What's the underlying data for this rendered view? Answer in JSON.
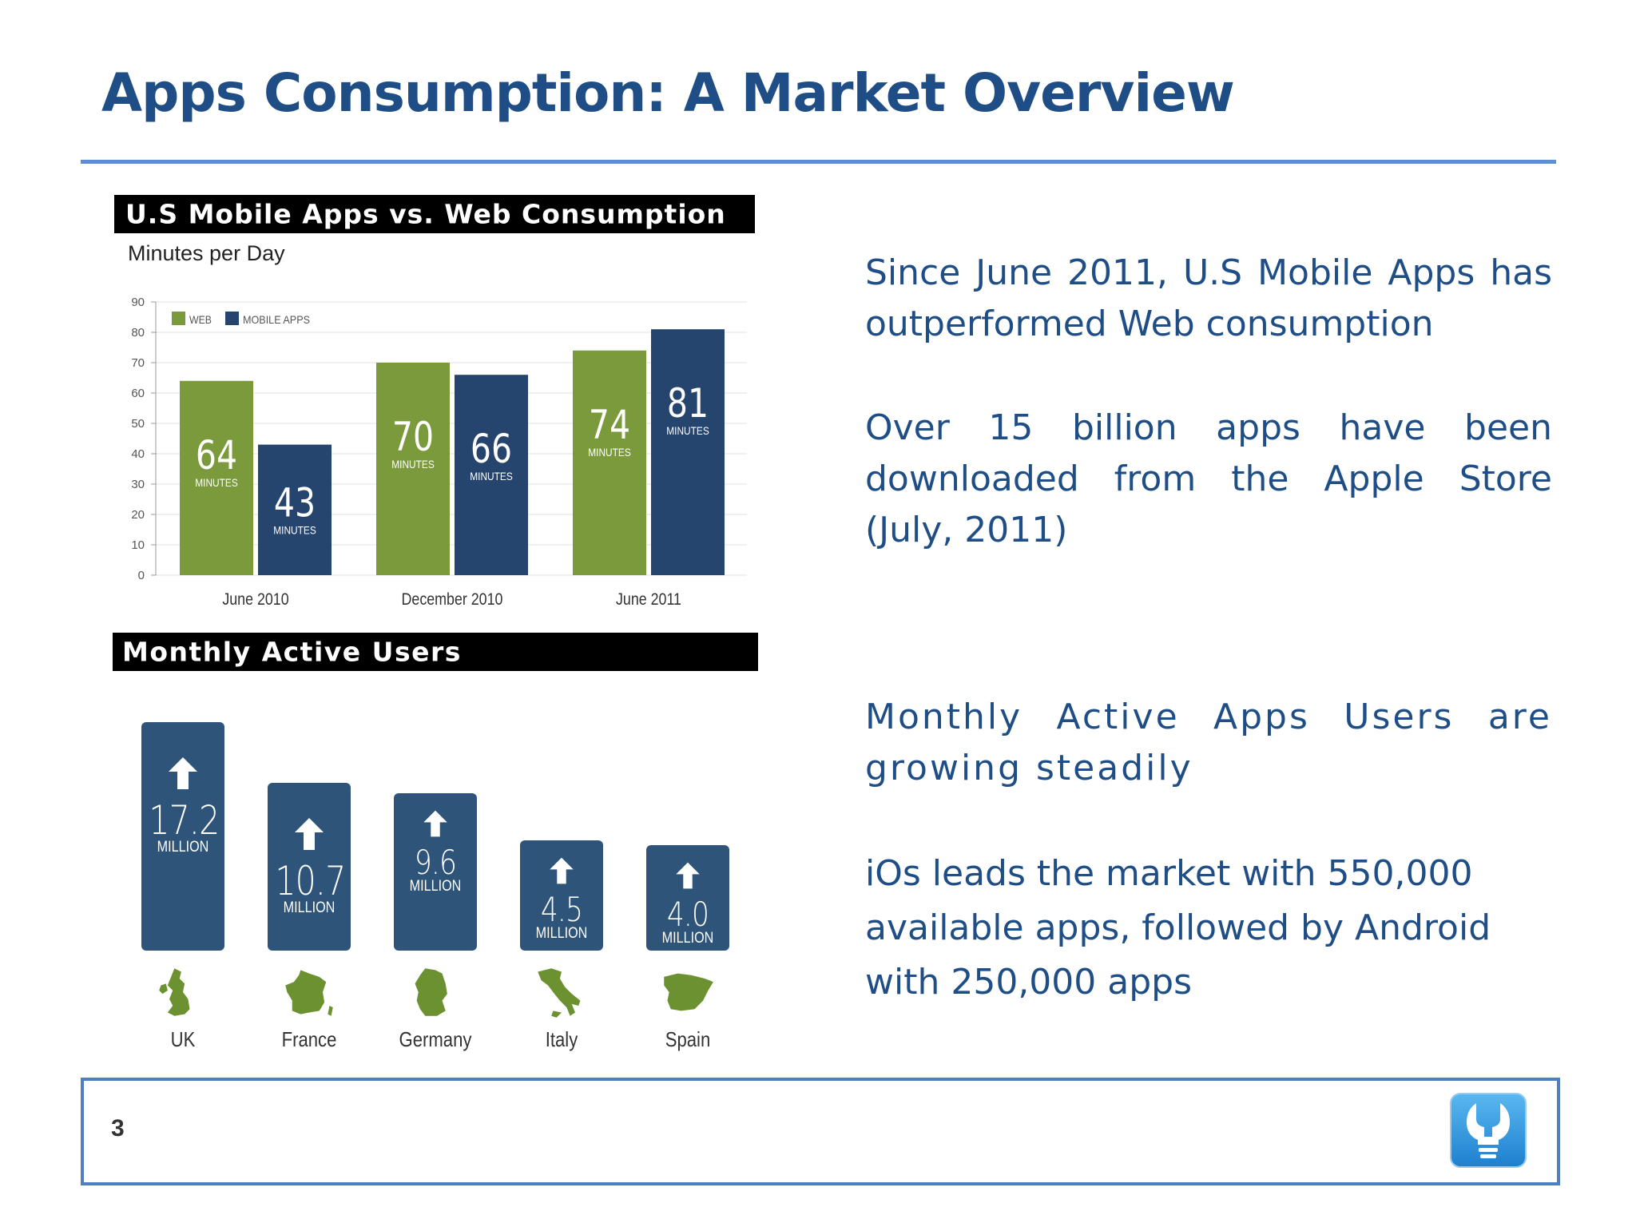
{
  "slide": {
    "title": "Apps Consumption: A Market Overview",
    "page_number": "3"
  },
  "colors": {
    "title": "#1f4e86",
    "rule": "#5b8fd0",
    "web": "#7a9a3c",
    "mobile_apps": "#25446e",
    "mau_bar": "#2e5479",
    "map_green": "#6b9130"
  },
  "chart1": {
    "banner": "U.S Mobile Apps vs. Web Consumption",
    "subtitle": "Minutes per Day"
  },
  "chart2": {
    "banner": "Monthly Active Users",
    "unit": "MILLION",
    "icon": "up-arrow-icon",
    "items": [
      {
        "country": "UK",
        "value": "17.2",
        "icon": "uk-map-icon"
      },
      {
        "country": "France",
        "value": "10.7",
        "icon": "france-map-icon"
      },
      {
        "country": "Germany",
        "value": "9.6",
        "icon": "germany-map-icon"
      },
      {
        "country": "Italy",
        "value": "4.5",
        "icon": "italy-map-icon"
      },
      {
        "country": "Spain",
        "value": "4.0",
        "icon": "spain-map-icon"
      }
    ]
  },
  "chart_data": [
    {
      "type": "bar",
      "title": "U.S Mobile Apps vs. Web Consumption",
      "ylabel": "Minutes per Day",
      "ylim": [
        0,
        90
      ],
      "yticks": [
        0,
        10,
        20,
        30,
        40,
        50,
        60,
        70,
        80,
        90
      ],
      "categories": [
        "June 2010",
        "December 2010",
        "June 2011"
      ],
      "value_unit_label": "MINUTES",
      "grid": true,
      "legend": "top-left",
      "series": [
        {
          "name": "WEB",
          "values": [
            64,
            70,
            74
          ],
          "color": "#7a9a3c"
        },
        {
          "name": "MOBILE APPS",
          "values": [
            43,
            66,
            81
          ],
          "color": "#25446e"
        }
      ]
    },
    {
      "type": "bar",
      "title": "Monthly Active Users",
      "categories": [
        "UK",
        "France",
        "Germany",
        "Italy",
        "Spain"
      ],
      "values": [
        17.2,
        10.7,
        9.6,
        4.5,
        4.0
      ],
      "value_unit_label": "MILLION"
    }
  ],
  "text": {
    "p1": "Since June 2011, U.S Mobile Apps has outperformed  Web consumption",
    "p2": "Over 15 billion apps have been downloaded from the Apple Store (July, 2011)",
    "p3": "Monthly Active Apps Users are growing steadily",
    "p4": "iOs leads the market with 550,000 available apps, followed by Android with 250,000 apps"
  },
  "logo": {
    "icon": "lightbulb-wrench-icon"
  }
}
